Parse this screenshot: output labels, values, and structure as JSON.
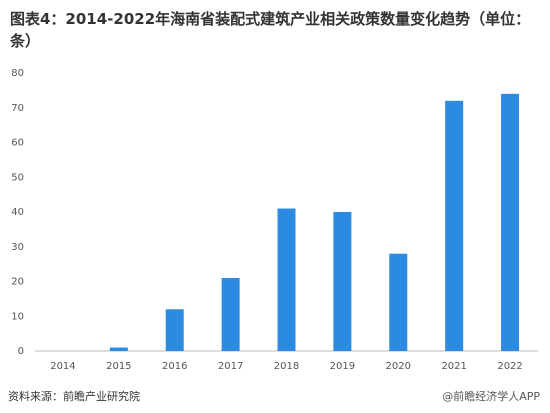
{
  "chart_data": {
    "type": "bar",
    "title": "图表4：2014-2022年海南省装配式建筑产业相关政策数量变化趋势（单位：条）",
    "categories": [
      "2014",
      "2015",
      "2016",
      "2017",
      "2018",
      "2019",
      "2020",
      "2021",
      "2022"
    ],
    "values": [
      0,
      1,
      12,
      21,
      41,
      40,
      28,
      72,
      74
    ],
    "color": "#2b8be3",
    "ylim": [
      0,
      80
    ],
    "yticks": [
      0,
      10,
      20,
      30,
      40,
      50,
      60,
      70,
      80
    ],
    "grid": false,
    "source": "资料来源：前瞻产业研究院",
    "watermark": "@前瞻经济学人APP"
  }
}
